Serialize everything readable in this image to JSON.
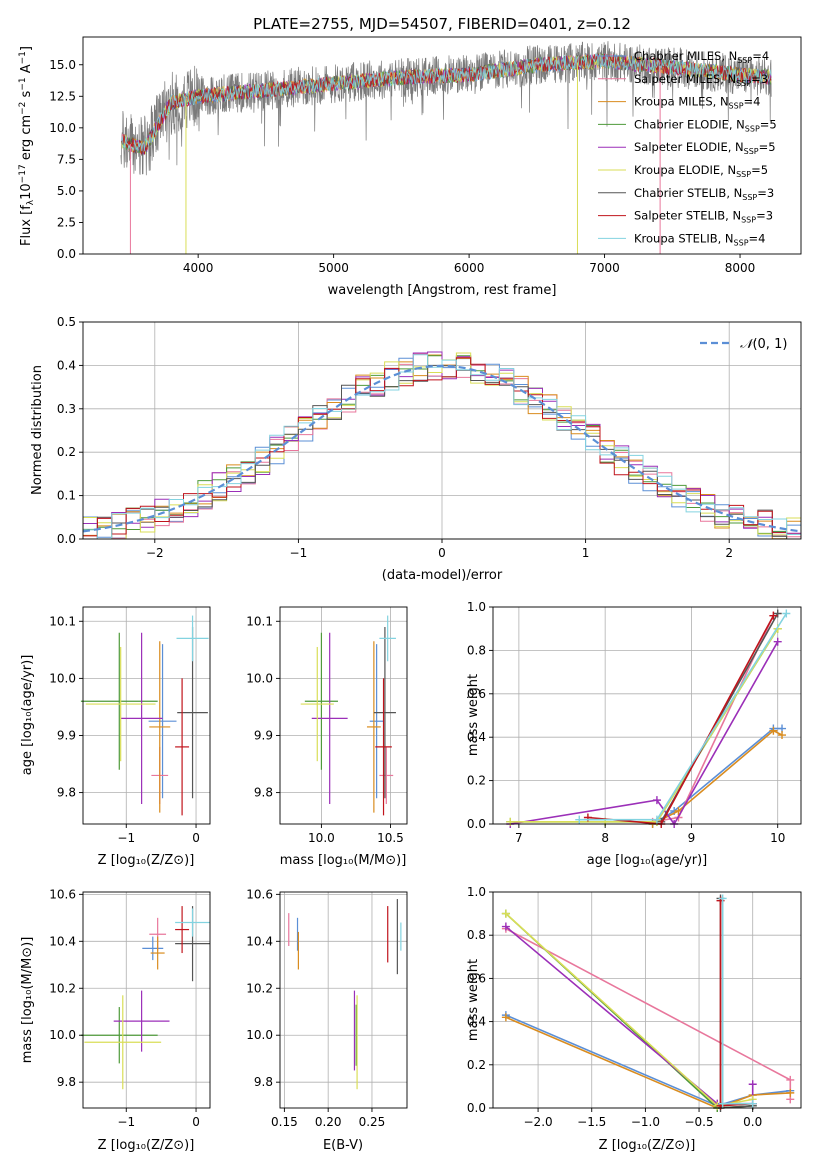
{
  "colors": {
    "chabrier_miles": "#5b8fd6",
    "salpeter_miles": "#e8779c",
    "kroupa_miles": "#d98c1f",
    "chabrier_elodie": "#4e9a3a",
    "salpeter_elodie": "#9b2fb8",
    "kroupa_elodie": "#d9de57",
    "chabrier_stelib": "#555555",
    "salpeter_stelib": "#c0141c",
    "kroupa_stelib": "#83d3e0",
    "normal": "#5b8fd6",
    "grid": "#b0b0b0"
  },
  "chart_data": [
    {
      "id": "spectrum",
      "type": "line",
      "title": "PLATE=2755, MJD=54507, FIBERID=0401, z=0.12",
      "xlabel": "wavelength [Angstrom, rest frame]",
      "ylabel_main": "Flux [f",
      "ylabel_sub": "λ",
      "ylabel_rest": "10",
      "ylabel_exp1": "−17",
      "ylabel_mid": " erg cm",
      "ylabel_exp2": "−2",
      "ylabel_mid2": " s",
      "ylabel_exp3": "−1",
      "ylabel_end": " A",
      "ylabel_exp4": "−1",
      "ylabel_close": "]",
      "xlim": [
        3150,
        8450
      ],
      "ylim": [
        0,
        17.2
      ],
      "xticks": [
        4000,
        5000,
        6000,
        7000,
        8000
      ],
      "yticks": [
        0.0,
        2.5,
        5.0,
        7.5,
        10.0,
        12.5,
        15.0
      ],
      "data_range": [
        3430,
        8230
      ],
      "grid": false,
      "legend_position": "right",
      "legend": [
        {
          "pre": "Chabrier MILES, N",
          "sub": "SSP",
          "post": "=4",
          "color_key": "chabrier_miles"
        },
        {
          "pre": "Salpeter MILES, N",
          "sub": "SSP",
          "post": "=3",
          "color_key": "salpeter_miles"
        },
        {
          "pre": "Kroupa MILES, N",
          "sub": "SSP",
          "post": "=4",
          "color_key": "kroupa_miles"
        },
        {
          "pre": "Chabrier ELODIE, N",
          "sub": "SSP",
          "post": "=5",
          "color_key": "chabrier_elodie"
        },
        {
          "pre": "Salpeter ELODIE, N",
          "sub": "SSP",
          "post": "=5",
          "color_key": "salpeter_elodie"
        },
        {
          "pre": "Kroupa ELODIE, N",
          "sub": "SSP",
          "post": "=5",
          "color_key": "kroupa_elodie"
        },
        {
          "pre": "Chabrier STELIB, N",
          "sub": "SSP",
          "post": "=3",
          "color_key": "chabrier_stelib"
        },
        {
          "pre": "Salpeter STELIB, N",
          "sub": "SSP",
          "post": "=3",
          "color_key": "salpeter_stelib"
        },
        {
          "pre": "Kroupa STELIB, N",
          "sub": "SSP",
          "post": "=4",
          "color_key": "kroupa_stelib"
        }
      ],
      "continuum_points": [
        [
          3430,
          9.0
        ],
        [
          3600,
          8.3
        ],
        [
          3800,
          12.0
        ],
        [
          4000,
          12.5
        ],
        [
          4500,
          13.0
        ],
        [
          5000,
          13.5
        ],
        [
          5500,
          14.0
        ],
        [
          6000,
          14.2
        ],
        [
          6500,
          15.0
        ],
        [
          7000,
          15.3
        ],
        [
          7500,
          14.8
        ],
        [
          8000,
          14.2
        ],
        [
          8230,
          14.0
        ]
      ]
    },
    {
      "id": "residuals",
      "type": "histogram",
      "xlabel": "(data-model)/error",
      "ylabel": "Normed distribution",
      "xlim": [
        -2.5,
        2.5
      ],
      "ylim": [
        0,
        0.5
      ],
      "xticks": [
        -2,
        -1,
        0,
        1,
        2
      ],
      "ytick_labels": [
        "0.0",
        "0.1",
        "0.2",
        "0.3",
        "0.4",
        "0.5"
      ],
      "yticks": [
        0,
        0.1,
        0.2,
        0.3,
        0.4,
        0.5
      ],
      "grid": true,
      "bin_width": 0.1,
      "legend_label_main": "𝒩",
      "legend_label_args": "(0, 1)",
      "legend_position": "top-right"
    },
    {
      "id": "age-vs-Z",
      "type": "errorbar",
      "xlabel": "Z [log₁₀(Z/Z⊙)]",
      "ylabel": "age  [log₁₀(age/yr)]",
      "xlim": [
        -1.62,
        0.2
      ],
      "ylim": [
        9.745,
        10.125
      ],
      "xticks": [
        -1,
        0
      ],
      "xtick_labels": [
        "−1",
        "0"
      ],
      "yticks": [
        9.8,
        9.9,
        10.0,
        10.1
      ],
      "ytick_labels": [
        "9.8",
        "9.9",
        "10.0",
        "10.1"
      ],
      "grid": true,
      "points": [
        {
          "c": "chabrier_miles",
          "x": -0.48,
          "xe": 0.2,
          "y": 9.925,
          "ye": 0.135
        },
        {
          "c": "salpeter_miles",
          "x": -0.52,
          "xe": 0.12,
          "y": 9.83,
          "ye": 0.05
        },
        {
          "c": "kroupa_miles",
          "x": -0.52,
          "xe": 0.15,
          "y": 9.915,
          "ye": 0.15
        },
        {
          "c": "chabrier_elodie",
          "x": -1.1,
          "xe": 0.55,
          "y": 9.96,
          "ye": 0.12
        },
        {
          "c": "salpeter_elodie",
          "x": -0.78,
          "xe": 0.3,
          "y": 9.93,
          "ye": 0.15
        },
        {
          "c": "kroupa_elodie",
          "x": -1.08,
          "xe": 0.5,
          "y": 9.955,
          "ye": 0.1
        },
        {
          "c": "chabrier_stelib",
          "x": -0.05,
          "xe": 0.22,
          "y": 9.94,
          "ye": 0.15
        },
        {
          "c": "salpeter_stelib",
          "x": -0.2,
          "xe": 0.1,
          "y": 9.88,
          "ye": 0.12
        },
        {
          "c": "kroupa_stelib",
          "x": -0.05,
          "xe": 0.23,
          "y": 10.07,
          "ye": 0.04
        }
      ]
    },
    {
      "id": "age-vs-mass",
      "type": "errorbar",
      "xlabel": "mass [log₁₀(M/M⊙)]",
      "ylabel": "",
      "xlim": [
        9.7,
        10.62
      ],
      "ylim": [
        9.745,
        10.125
      ],
      "xticks": [
        10.0,
        10.5
      ],
      "xtick_labels": [
        "10.0",
        "10.5"
      ],
      "yticks": [
        9.8,
        9.9,
        10.0,
        10.1
      ],
      "ytick_labels": [
        "9.8",
        "9.9",
        "10.0",
        "10.1"
      ],
      "grid": true,
      "points": [
        {
          "c": "chabrier_miles",
          "x": 10.4,
          "xe": 0.05,
          "y": 9.925,
          "ye": 0.135
        },
        {
          "c": "salpeter_miles",
          "x": 10.47,
          "xe": 0.05,
          "y": 9.83,
          "ye": 0.05
        },
        {
          "c": "kroupa_miles",
          "x": 10.38,
          "xe": 0.05,
          "y": 9.915,
          "ye": 0.15
        },
        {
          "c": "chabrier_elodie",
          "x": 10.0,
          "xe": 0.12,
          "y": 9.96,
          "ye": 0.12
        },
        {
          "c": "salpeter_elodie",
          "x": 10.06,
          "xe": 0.13,
          "y": 9.93,
          "ye": 0.15
        },
        {
          "c": "kroupa_elodie",
          "x": 9.97,
          "xe": 0.12,
          "y": 9.955,
          "ye": 0.1
        },
        {
          "c": "chabrier_stelib",
          "x": 10.46,
          "xe": 0.08,
          "y": 9.94,
          "ye": 0.15
        },
        {
          "c": "salpeter_stelib",
          "x": 10.45,
          "xe": 0.06,
          "y": 9.88,
          "ye": 0.12
        },
        {
          "c": "kroupa_stelib",
          "x": 10.48,
          "xe": 0.06,
          "y": 10.07,
          "ye": 0.04
        }
      ]
    },
    {
      "id": "massweight-vs-age",
      "type": "line",
      "xlabel": "age  [log₁₀(age/yr)]",
      "ylabel": "mass weight",
      "xlim": [
        6.7,
        10.27
      ],
      "ylim": [
        0,
        1
      ],
      "xticks": [
        7,
        8,
        9,
        10
      ],
      "xtick_labels": [
        "7",
        "8",
        "9",
        "10"
      ],
      "yticks": [
        0,
        0.2,
        0.4,
        0.6,
        0.8,
        1.0
      ],
      "ytick_labels": [
        "0.0",
        "0.2",
        "0.4",
        "0.6",
        "0.8",
        "1.0"
      ],
      "grid": true,
      "series": [
        {
          "c": "chabrier_miles",
          "x": [
            8.55,
            8.8,
            9.95,
            10.05
          ],
          "y": [
            0.0,
            0.06,
            0.44,
            0.44
          ]
        },
        {
          "c": "salpeter_miles",
          "x": [
            8.55,
            8.85,
            9.95
          ],
          "y": [
            0.01,
            0.03,
            0.96
          ]
        },
        {
          "c": "kroupa_miles",
          "x": [
            8.55,
            8.85,
            9.95,
            10.05
          ],
          "y": [
            0.0,
            0.06,
            0.43,
            0.41
          ]
        },
        {
          "c": "chabrier_elodie",
          "x": [
            6.9,
            8.0,
            8.6,
            10.0
          ],
          "y": [
            0.01,
            0.01,
            0.01,
            0.9
          ]
        },
        {
          "c": "salpeter_elodie",
          "x": [
            6.9,
            8.6,
            8.8,
            10.0
          ],
          "y": [
            0.0,
            0.11,
            0.0,
            0.84
          ]
        },
        {
          "c": "kroupa_elodie",
          "x": [
            6.9,
            8.0,
            8.6,
            10.0
          ],
          "y": [
            0.01,
            0.01,
            0.01,
            0.9
          ]
        },
        {
          "c": "chabrier_stelib",
          "x": [
            8.65,
            10.0
          ],
          "y": [
            0.01,
            0.97
          ]
        },
        {
          "c": "salpeter_stelib",
          "x": [
            7.8,
            8.65,
            9.95
          ],
          "y": [
            0.03,
            0.0,
            0.96
          ]
        },
        {
          "c": "kroupa_stelib",
          "x": [
            7.7,
            8.6,
            10.1
          ],
          "y": [
            0.02,
            0.02,
            0.97
          ]
        }
      ]
    },
    {
      "id": "mass-vs-Z",
      "type": "errorbar",
      "xlabel": "Z [log₁₀(Z/Z⊙)]",
      "ylabel": "mass [log₁₀(M/M⊙)]",
      "xlim": [
        -1.62,
        0.2
      ],
      "ylim": [
        9.69,
        10.61
      ],
      "xticks": [
        -1,
        0
      ],
      "xtick_labels": [
        "−1",
        "0"
      ],
      "yticks": [
        9.8,
        10.0,
        10.2,
        10.4,
        10.6
      ],
      "ytick_labels": [
        "9.8",
        "10.0",
        "10.2",
        "10.4",
        "10.6"
      ],
      "grid": true,
      "points": [
        {
          "c": "chabrier_miles",
          "x": -0.62,
          "xe": 0.15,
          "y": 10.37,
          "ye": 0.05
        },
        {
          "c": "salpeter_miles",
          "x": -0.55,
          "xe": 0.12,
          "y": 10.43,
          "ye": 0.07
        },
        {
          "c": "kroupa_miles",
          "x": -0.55,
          "xe": 0.1,
          "y": 10.35,
          "ye": 0.07
        },
        {
          "c": "chabrier_elodie",
          "x": -1.1,
          "xe": 0.55,
          "y": 10.0,
          "ye": 0.12
        },
        {
          "c": "salpeter_elodie",
          "x": -0.78,
          "xe": 0.4,
          "y": 10.06,
          "ye": 0.13
        },
        {
          "c": "kroupa_elodie",
          "x": -1.05,
          "xe": 0.55,
          "y": 9.97,
          "ye": 0.2
        },
        {
          "c": "chabrier_stelib",
          "x": -0.05,
          "xe": 0.25,
          "y": 10.39,
          "ye": 0.16
        },
        {
          "c": "salpeter_stelib",
          "x": -0.2,
          "xe": 0.1,
          "y": 10.45,
          "ye": 0.1
        },
        {
          "c": "kroupa_stelib",
          "x": -0.05,
          "xe": 0.25,
          "y": 10.48,
          "ye": 0.06
        }
      ]
    },
    {
      "id": "mass-vs-ebv",
      "type": "errorbar",
      "xlabel": "E(B-V)",
      "ylabel": "",
      "xlim": [
        0.145,
        0.29
      ],
      "ylim": [
        9.69,
        10.61
      ],
      "xticks": [
        0.15,
        0.2,
        0.25
      ],
      "xtick_labels": [
        "0.15",
        "0.20",
        "0.25"
      ],
      "yticks": [
        9.8,
        10.0,
        10.2,
        10.4,
        10.6
      ],
      "ytick_labels": [
        "9.8",
        "10.0",
        "10.2",
        "10.4",
        "10.6"
      ],
      "grid": true,
      "points": [
        {
          "c": "chabrier_miles",
          "x": 0.165,
          "ye": 0.07,
          "y": 10.43
        },
        {
          "c": "salpeter_miles",
          "x": 0.155,
          "ye": 0.07,
          "y": 10.45
        },
        {
          "c": "kroupa_miles",
          "x": 0.166,
          "ye": 0.08,
          "y": 10.36
        },
        {
          "c": "chabrier_elodie",
          "x": 0.232,
          "ye": 0.13,
          "y": 10.0
        },
        {
          "c": "salpeter_elodie",
          "x": 0.23,
          "ye": 0.17,
          "y": 10.02
        },
        {
          "c": "kroupa_elodie",
          "x": 0.233,
          "ye": 0.2,
          "y": 9.97
        },
        {
          "c": "chabrier_stelib",
          "x": 0.279,
          "ye": 0.16,
          "y": 10.42
        },
        {
          "c": "salpeter_stelib",
          "x": 0.268,
          "ye": 0.12,
          "y": 10.43
        },
        {
          "c": "kroupa_stelib",
          "x": 0.283,
          "ye": 0.06,
          "y": 10.42
        }
      ]
    },
    {
      "id": "massweight-vs-Z",
      "type": "line",
      "xlabel": "Z [log₁₀(Z/Z⊙)]",
      "ylabel": "mass weight",
      "xlim": [
        -2.42,
        0.45
      ],
      "ylim": [
        0,
        1
      ],
      "xticks": [
        -2.0,
        -1.5,
        -1.0,
        -0.5,
        0.0
      ],
      "xtick_labels": [
        "−2.0",
        "−1.5",
        "−1.0",
        "−0.5",
        "0.0"
      ],
      "yticks": [
        0,
        0.2,
        0.4,
        0.6,
        0.8,
        1.0
      ],
      "ytick_labels": [
        "0.0",
        "0.2",
        "0.4",
        "0.6",
        "0.8",
        "1.0"
      ],
      "grid": true,
      "series": [
        {
          "c": "chabrier_miles",
          "x": [
            -2.3,
            -0.33,
            0.0,
            0.35
          ],
          "y": [
            0.43,
            0.01,
            0.06,
            0.08
          ]
        },
        {
          "c": "salpeter_miles",
          "x": [
            -2.3,
            0.35,
            0.35
          ],
          "y": [
            0.83,
            0.13,
            0.04
          ]
        },
        {
          "c": "kroupa_miles",
          "x": [
            -2.3,
            -0.33,
            0.0,
            0.35
          ],
          "y": [
            0.42,
            0.0,
            0.06,
            0.07
          ]
        },
        {
          "c": "chabrier_elodie",
          "x": [
            -2.3,
            -0.33,
            0.0
          ],
          "y": [
            0.9,
            0.0,
            0.01
          ]
        },
        {
          "c": "salpeter_elodie",
          "x": [
            -2.3,
            -0.33,
            0.0,
            0.0
          ],
          "y": [
            0.84,
            0.02,
            0.02,
            0.11
          ]
        },
        {
          "c": "kroupa_elodie",
          "x": [
            -2.3,
            -0.33,
            0.0
          ],
          "y": [
            0.9,
            0.01,
            0.04
          ]
        },
        {
          "c": "chabrier_stelib",
          "x": [
            -0.3,
            -0.3,
            0.0
          ],
          "y": [
            0.97,
            0.0,
            0.01
          ]
        },
        {
          "c": "salpeter_stelib",
          "x": [
            -0.3,
            -0.3,
            0.0
          ],
          "y": [
            0.96,
            0.01,
            0.02
          ]
        },
        {
          "c": "kroupa_stelib",
          "x": [
            -0.28,
            -0.28,
            0.0
          ],
          "y": [
            0.97,
            0.02,
            0.02
          ]
        }
      ]
    }
  ]
}
